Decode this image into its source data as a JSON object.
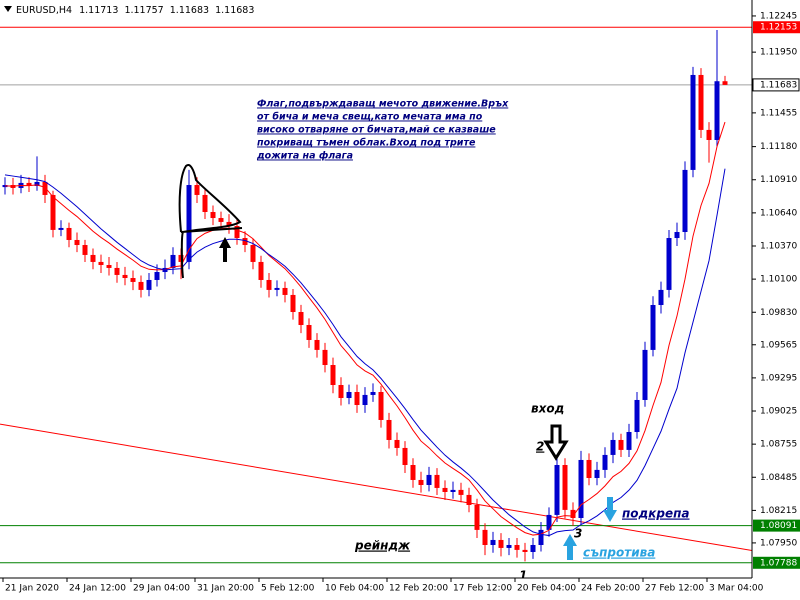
{
  "chart_data": {
    "type": "candlestick",
    "symbol": "EURUSD,H4",
    "categories": [
      "21 Jan 2020",
      null,
      null,
      null,
      null,
      null,
      null,
      null,
      "24 Jan 12:00",
      null,
      null,
      null,
      null,
      null,
      null,
      null,
      "29 Jan 04:00",
      null,
      null,
      null,
      null,
      null,
      null,
      null,
      "31 Jan 20:00",
      null,
      null,
      null,
      null,
      null,
      null,
      null,
      "5 Feb 12:00",
      null,
      null,
      null,
      null,
      null,
      null,
      null,
      "10 Feb 04:00",
      null,
      null,
      null,
      null,
      null,
      null,
      null,
      "12 Feb 20:00",
      null,
      null,
      null,
      null,
      null,
      null,
      null,
      "17 Feb 12:00",
      null,
      null,
      null,
      null,
      null,
      null,
      null,
      "20 Feb 04:00",
      null,
      null,
      null,
      null,
      null,
      null,
      null,
      "24 Feb 20:00",
      null,
      null,
      null,
      null,
      null,
      null,
      null,
      "27 Feb 12:00",
      null,
      null,
      null,
      null,
      null,
      null,
      null,
      "3 Mar 04:00",
      null,
      null
    ],
    "open": [
      1.1085,
      1.10867,
      1.10843,
      1.10884,
      1.10859,
      1.10892,
      1.10786,
      1.10501,
      1.10517,
      1.10419,
      1.10378,
      1.10297,
      1.1024,
      1.10215,
      1.10191,
      1.10134,
      1.10109,
      1.10077,
      1.10012,
      1.10093,
      1.10158,
      1.10191,
      1.10297,
      1.1024,
      1.10867,
      1.10786,
      1.10647,
      1.10598,
      1.10566,
      1.10533,
      1.10435,
      1.10378,
      1.1024,
      1.10093,
      1.10012,
      1.10028,
      1.09971,
      1.09832,
      1.09726,
      1.09604,
      1.09523,
      1.094,
      1.09237,
      1.09131,
      1.0918,
      1.09074,
      1.09156,
      1.0918,
      1.08952,
      1.08789,
      1.08724,
      1.08585,
      1.08463,
      1.08422,
      1.08504,
      1.08398,
      1.08365,
      1.08382,
      1.08341,
      1.08259,
      1.08056,
      1.07933,
      1.07974,
      1.07909,
      1.07933,
      1.07893,
      1.07876,
      1.07933,
      1.08056,
      1.08178,
      1.08585,
      1.08219,
      1.08153,
      1.08626,
      1.08479,
      1.08545,
      1.08667,
      1.08789,
      1.08708,
      1.08854,
      1.09115,
      1.09523,
      1.09889,
      1.10012,
      1.10435,
      1.10484,
      1.1099,
      1.11764,
      1.11316,
      1.11234,
      1.11713
    ],
    "high": [
      1.1093,
      1.10925,
      1.1095,
      1.1093,
      1.111,
      1.1095,
      1.1082,
      1.1058,
      1.1056,
      1.1048,
      1.1042,
      1.1035,
      1.103,
      1.1028,
      1.1024,
      1.102,
      1.1017,
      1.1013,
      1.1015,
      1.1022,
      1.1026,
      1.1036,
      1.1035,
      1.1099,
      1.1093,
      1.1084,
      1.107,
      1.1065,
      1.1063,
      1.1059,
      1.1049,
      1.1043,
      1.1029,
      1.1015,
      1.1009,
      1.1008,
      1.1002,
      1.0989,
      1.0978,
      1.0966,
      1.0958,
      1.0946,
      1.093,
      1.0924,
      1.0924,
      1.0922,
      1.0925,
      1.0923,
      1.0901,
      1.0885,
      1.0878,
      1.0864,
      1.0853,
      1.0857,
      1.0856,
      1.0846,
      1.0845,
      1.0844,
      1.084,
      1.0831,
      1.0811,
      1.0804,
      1.0803,
      1.0799,
      1.0799,
      1.0795,
      1.0799,
      1.0812,
      1.0824,
      1.0867,
      1.0864,
      1.0828,
      1.087,
      1.0868,
      1.0861,
      1.0873,
      1.0885,
      1.0884,
      1.0892,
      1.0918,
      1.0959,
      1.0996,
      1.1008,
      1.105,
      1.1056,
      1.1106,
      1.1183,
      1.1182,
      1.1138,
      1.1213,
      1.11757
    ],
    "low": [
      1.1079,
      1.1079,
      1.108,
      1.1081,
      1.1082,
      1.1072,
      1.1044,
      1.1045,
      1.1036,
      1.1032,
      1.1024,
      1.1018,
      1.1015,
      1.1013,
      1.1007,
      1.1005,
      1.1001,
      1.0995,
      1.0996,
      1.1004,
      1.101,
      1.1014,
      1.101,
      1.1018,
      1.1072,
      1.1059,
      1.1054,
      1.1051,
      1.1047,
      1.1038,
      1.1032,
      1.1018,
      1.1003,
      1.0995,
      1.0996,
      1.0991,
      1.0977,
      1.0966,
      1.0954,
      1.0946,
      1.0934,
      1.0917,
      1.0907,
      1.0908,
      1.0901,
      1.0901,
      1.091,
      1.0889,
      1.0872,
      1.0866,
      1.0852,
      1.084,
      1.0836,
      1.0837,
      1.0834,
      1.083,
      1.0831,
      1.0828,
      1.082,
      1.0799,
      1.0785,
      1.0787,
      1.0784,
      1.0785,
      1.0783,
      1.078,
      1.0782,
      1.0788,
      1.08,
      1.0812,
      1.0815,
      1.0809,
      1.081,
      1.0842,
      1.0842,
      1.0848,
      1.086,
      1.0865,
      1.0865,
      1.088,
      1.0906,
      1.0947,
      1.0982,
      1.0995,
      1.1037,
      1.1042,
      1.1093,
      1.1125,
      1.1105,
      1.1118,
      1.11683
    ],
    "close": [
      1.10867,
      1.10843,
      1.10884,
      1.10859,
      1.10892,
      1.10786,
      1.10501,
      1.10517,
      1.10419,
      1.10378,
      1.10297,
      1.1024,
      1.10215,
      1.10191,
      1.10134,
      1.10109,
      1.10077,
      1.10012,
      1.10093,
      1.10158,
      1.10191,
      1.10297,
      1.1024,
      1.10867,
      1.10786,
      1.10647,
      1.10598,
      1.10566,
      1.10533,
      1.10435,
      1.10378,
      1.1024,
      1.10093,
      1.10012,
      1.10028,
      1.09971,
      1.09832,
      1.09726,
      1.09604,
      1.09523,
      1.094,
      1.09237,
      1.09131,
      1.0918,
      1.09074,
      1.09156,
      1.0918,
      1.08952,
      1.08789,
      1.08724,
      1.08585,
      1.08463,
      1.08422,
      1.08504,
      1.08398,
      1.08365,
      1.08382,
      1.08341,
      1.08259,
      1.08056,
      1.07933,
      1.07974,
      1.07909,
      1.07933,
      1.07893,
      1.07876,
      1.07933,
      1.08056,
      1.08178,
      1.08585,
      1.08219,
      1.08153,
      1.08626,
      1.08479,
      1.08545,
      1.08667,
      1.08789,
      1.08708,
      1.08854,
      1.09115,
      1.09523,
      1.09889,
      1.10012,
      1.10435,
      1.10484,
      1.1099,
      1.11764,
      1.11316,
      1.11234,
      1.11713,
      1.11683
    ],
    "up_color": "#0000cd",
    "down_color": "#ff0000",
    "series": [
      {
        "color": "#ff0000",
        "values": [
          1.1086,
          1.10858,
          1.10863,
          1.10862,
          1.10868,
          1.10848,
          1.1077,
          1.10715,
          1.1066,
          1.1061,
          1.1055,
          1.1049,
          1.1044,
          1.10395,
          1.10345,
          1.103,
          1.10255,
          1.10205,
          1.1018,
          1.10175,
          1.10178,
          1.102,
          1.10208,
          1.1034,
          1.1043,
          1.10473,
          1.10498,
          1.10512,
          1.10516,
          1.105,
          1.10476,
          1.10429,
          1.10362,
          1.10292,
          1.10239,
          1.10185,
          1.10114,
          1.10036,
          1.0995,
          1.09865,
          1.09772,
          1.09665,
          1.09558,
          1.09483,
          1.09401,
          1.09352,
          1.09317,
          1.09244,
          1.09153,
          1.09067,
          1.08971,
          1.08869,
          1.0878,
          1.08725,
          1.0866,
          1.08601,
          1.08557,
          1.08514,
          1.08463,
          1.08382,
          1.08292,
          1.08228,
          1.08164,
          1.08118,
          1.08073,
          1.08034,
          1.08014,
          1.08022,
          1.08053,
          1.0816,
          1.08172,
          1.08168,
          1.0826,
          1.08304,
          1.08352,
          1.08415,
          1.0849,
          1.08533,
          1.08598,
          1.087,
          1.08865,
          1.0907,
          1.09258,
          1.0956,
          1.098,
          1.101,
          1.1045,
          1.107,
          1.1088,
          1.1118,
          1.1138
        ]
      },
      {
        "color": "#0000cd",
        "values": [
          1.1095,
          1.1094,
          1.1093,
          1.1092,
          1.1091,
          1.10895,
          1.1085,
          1.108,
          1.10745,
          1.1069,
          1.1063,
          1.1057,
          1.1051,
          1.10455,
          1.104,
          1.1035,
          1.103,
          1.1025,
          1.10215,
          1.1019,
          1.10175,
          1.1018,
          1.10185,
          1.1026,
          1.1032,
          1.1036,
          1.1039,
          1.1041,
          1.10425,
          1.10425,
          1.10415,
          1.1039,
          1.1035,
          1.103,
          1.10255,
          1.10205,
          1.1014,
          1.1007,
          1.0999,
          1.0991,
          1.09825,
          1.0973,
          1.0963,
          1.0955,
          1.0947,
          1.0941,
          1.0936,
          1.0929,
          1.0921,
          1.0913,
          1.09045,
          1.08955,
          1.0887,
          1.088,
          1.0873,
          1.08665,
          1.0861,
          1.0856,
          1.08505,
          1.0844,
          1.0837,
          1.083,
          1.0824,
          1.0818,
          1.0813,
          1.0808,
          1.0804,
          1.0802,
          1.0801,
          1.0804,
          1.0805,
          1.08055,
          1.081,
          1.0813,
          1.0817,
          1.0822,
          1.0828,
          1.0832,
          1.0838,
          1.0846,
          1.0858,
          1.0872,
          1.0886,
          1.0904,
          1.0921,
          1.095,
          1.0975,
          1.1,
          1.1025,
          1.1062,
          1.11
        ]
      }
    ],
    "ylim": [
      1.07664,
      1.12375
    ],
    "yticks": [
      1.12245,
      {
        "value": 1.1195,
        "label": "1.11950"
      },
      1.11455,
      {
        "value": 1.1118,
        "label": "1.11180"
      },
      {
        "value": 1.1091,
        "label": "1.10910"
      },
      {
        "value": 1.1064,
        "label": "1.10640"
      },
      {
        "value": 1.1037,
        "label": "1.10370"
      },
      {
        "value": 1.101,
        "label": "1.10100"
      },
      {
        "value": 1.0983,
        "label": "1.09830"
      },
      1.09565,
      1.09295,
      1.09025,
      1.08755,
      1.08485,
      1.08215,
      {
        "value": 1.0795,
        "label": "1.07950"
      }
    ],
    "hlines": [
      {
        "value": 1.12153,
        "color": "#ff0000"
      },
      {
        "value": 1.08091,
        "color": "#008000"
      },
      {
        "value": 1.07788,
        "color": "#008000"
      }
    ],
    "current_price_color": "#a0a0a0",
    "trendline": {
      "x": [
        0,
        90
      ],
      "values": [
        1.08911,
        1.07925
      ],
      "color": "#ff0000"
    },
    "annotations": {
      "note": [
        "Флаг,подвърждаващ мечото движение.Връх",
        "от бича и меча свещ,като мечата има по",
        "високо отваряне от бичата,май се казваше",
        "покриващ тъмен облак.Вход под трите",
        "дожита на флага"
      ],
      "entry": "вход",
      "point_1": "1",
      "point_2": "2",
      "point_3": "3",
      "range": "рейндж",
      "support": "подкрепа",
      "resistance": "съпротива"
    }
  }
}
